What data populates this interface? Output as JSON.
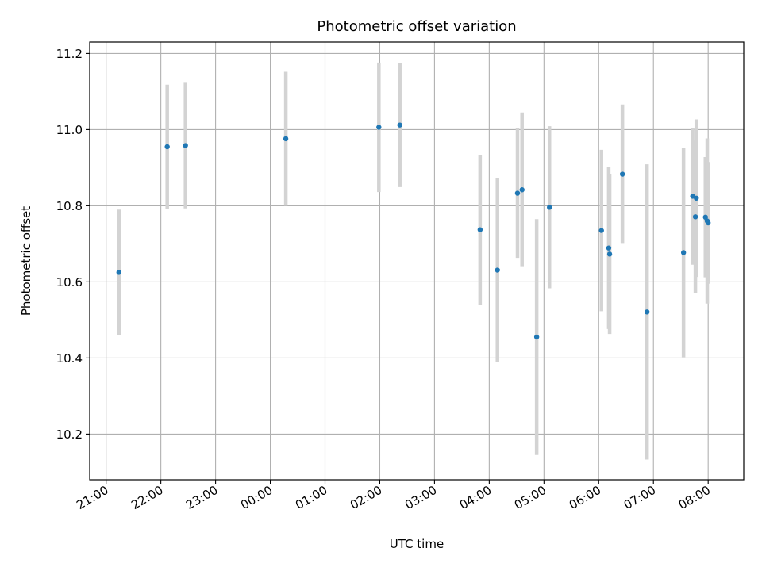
{
  "chart_data": {
    "type": "scatter",
    "title": "Photometric offset variation",
    "xlabel": "UTC time",
    "ylabel": "Photometric offset",
    "x_ticks": [
      "21:00",
      "22:00",
      "23:00",
      "00:00",
      "01:00",
      "02:00",
      "03:00",
      "04:00",
      "05:00",
      "06:00",
      "07:00",
      "08:00"
    ],
    "x_range_hours": [
      20.7,
      32.65
    ],
    "y_ticks": [
      "10.2",
      "10.4",
      "10.6",
      "10.8",
      "11.0",
      "11.2"
    ],
    "ylim": [
      10.08,
      11.23
    ],
    "grid": true,
    "colors": {
      "point": "#1f77b4",
      "errorbar": "#d3d3d3",
      "grid": "#b0b0b0"
    },
    "points": [
      {
        "t": "21:14",
        "y": 10.625,
        "err": 0.165
      },
      {
        "t": "22:07",
        "y": 10.955,
        "err": 0.163
      },
      {
        "t": "22:27",
        "y": 10.958,
        "err": 0.165
      },
      {
        "t": "00:17",
        "y": 10.976,
        "err": 0.176
      },
      {
        "t": "01:59",
        "y": 11.006,
        "err": 0.17
      },
      {
        "t": "02:22",
        "y": 11.012,
        "err": 0.163
      },
      {
        "t": "03:50",
        "y": 10.737,
        "err": 0.197
      },
      {
        "t": "04:09",
        "y": 10.631,
        "err": 0.241
      },
      {
        "t": "04:31",
        "y": 10.833,
        "err": 0.17
      },
      {
        "t": "04:36",
        "y": 10.842,
        "err": 0.203
      },
      {
        "t": "04:52",
        "y": 10.455,
        "err": 0.31
      },
      {
        "t": "05:06",
        "y": 10.796,
        "err": 0.213
      },
      {
        "t": "06:03",
        "y": 10.735,
        "err": 0.212
      },
      {
        "t": "06:11",
        "y": 10.689,
        "err": 0.213
      },
      {
        "t": "06:12",
        "y": 10.673,
        "err": 0.21
      },
      {
        "t": "06:26",
        "y": 10.883,
        "err": 0.183
      },
      {
        "t": "06:53",
        "y": 10.521,
        "err": 0.388
      },
      {
        "t": "07:33",
        "y": 10.677,
        "err": 0.275
      },
      {
        "t": "07:43",
        "y": 10.825,
        "err": 0.18
      },
      {
        "t": "07:46",
        "y": 10.771,
        "err": 0.2
      },
      {
        "t": "07:47",
        "y": 10.82,
        "err": 0.207
      },
      {
        "t": "07:57",
        "y": 10.77,
        "err": 0.158
      },
      {
        "t": "07:59",
        "y": 10.76,
        "err": 0.217
      },
      {
        "t": "08:00",
        "y": 10.755,
        "err": 0.16
      }
    ]
  }
}
